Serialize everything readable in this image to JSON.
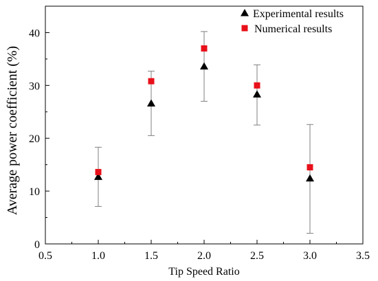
{
  "chart_data": {
    "type": "scatter",
    "xlabel": "Tip Speed Ratio",
    "ylabel": "Average power coefficient (%)",
    "xlim": [
      0.5,
      3.5
    ],
    "ylim": [
      0,
      45
    ],
    "x_ticks": [
      0.5,
      1.0,
      1.5,
      2.0,
      2.5,
      3.0,
      3.5
    ],
    "x_tick_labels": [
      "0.5",
      "1.0",
      "1.5",
      "2.0",
      "2.5",
      "3.0",
      "3.5"
    ],
    "y_ticks": [
      0,
      10,
      20,
      30,
      40
    ],
    "y_tick_labels": [
      "0",
      "10",
      "20",
      "30",
      "40"
    ],
    "grid": false,
    "legend_position": "top-right",
    "series": [
      {
        "name": "Experimental results",
        "marker": "triangle",
        "color": "#000000",
        "x": [
          1.0,
          1.5,
          2.0,
          2.5,
          3.0
        ],
        "y": [
          12.7,
          26.6,
          33.6,
          28.3,
          12.4
        ],
        "error_low": [
          7.1,
          20.5,
          27.0,
          22.5,
          2.0
        ],
        "error_high": [
          18.3,
          32.7,
          40.2,
          33.9,
          22.6
        ]
      },
      {
        "name": "Numerical results",
        "marker": "square",
        "color": "#e8101a",
        "x": [
          1.0,
          1.5,
          2.0,
          2.5,
          3.0
        ],
        "y": [
          13.6,
          30.8,
          37.0,
          30.0,
          14.5
        ]
      }
    ],
    "errorbar_color": "#7f7f7f"
  }
}
